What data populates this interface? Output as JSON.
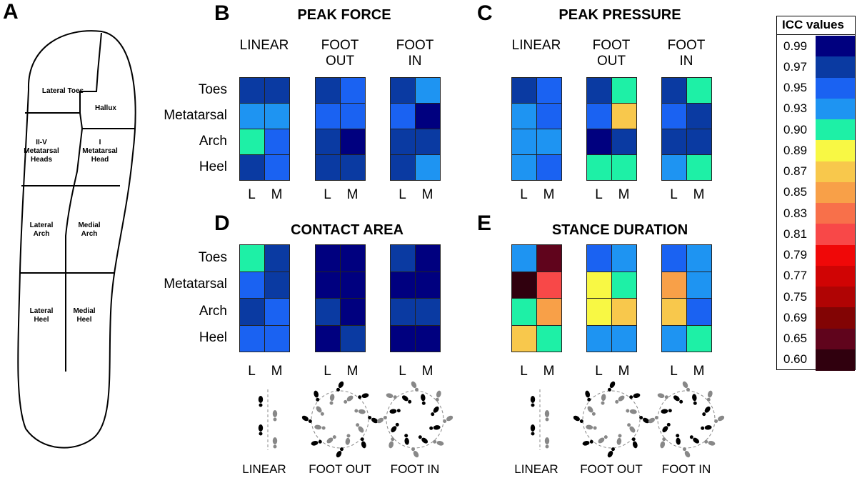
{
  "chart_data": {
    "type": "heatmap",
    "foot_diagram": {
      "letter": "A",
      "regions": [
        "Lateral Toes",
        "Hallux",
        "II-V Metatarsal Heads",
        "I Metatarsal Head",
        "Lateral Arch",
        "Medial Arch",
        "Lateral Heel",
        "Medial Heel"
      ]
    },
    "row_labels": [
      "Toes",
      "Metatarsal",
      "Arch",
      "Heel"
    ],
    "col_labels": [
      "L",
      "M"
    ],
    "legend": {
      "title": "ICC values",
      "ticks": [
        0.99,
        0.97,
        0.95,
        0.93,
        {
          "value": 0.9,
          "label": "0.90"
        },
        0.89,
        0.87,
        0.85,
        0.83,
        0.81,
        0.79,
        0.77,
        0.75,
        0.69,
        0.65,
        {
          "value": 0.6,
          "label": "0.60"
        }
      ],
      "colors": [
        "#00007f",
        "#0a3aa2",
        "#1a62f2",
        "#1e94f2",
        "#1ef0a6",
        "#f8f844",
        "#f8c84c",
        "#f8a048",
        "#f8704a",
        "#f84848",
        "#f00808",
        "#d00404",
        "#b00404",
        "#820404",
        "#60041c",
        "#30000e"
      ]
    },
    "panels": [
      {
        "letter": "B",
        "title": "PEAK FORCE",
        "maps": [
          {
            "condition": "LINEAR",
            "values": [
              [
                0.97,
                0.97
              ],
              [
                0.93,
                0.93
              ],
              [
                0.9,
                0.95
              ],
              [
                0.97,
                0.95
              ]
            ]
          },
          {
            "condition": "FOOT OUT",
            "values": [
              [
                0.97,
                0.95
              ],
              [
                0.95,
                0.95
              ],
              [
                0.97,
                0.99
              ],
              [
                0.97,
                0.97
              ]
            ]
          },
          {
            "condition": "FOOT IN",
            "values": [
              [
                0.97,
                0.93
              ],
              [
                0.95,
                0.99
              ],
              [
                0.97,
                0.97
              ],
              [
                0.97,
                0.93
              ]
            ]
          }
        ]
      },
      {
        "letter": "C",
        "title": "PEAK PRESSURE",
        "maps": [
          {
            "condition": "LINEAR",
            "values": [
              [
                0.97,
                0.95
              ],
              [
                0.93,
                0.95
              ],
              [
                0.93,
                0.93
              ],
              [
                0.93,
                0.95
              ]
            ]
          },
          {
            "condition": "FOOT OUT",
            "values": [
              [
                0.97,
                0.9
              ],
              [
                0.95,
                0.87
              ],
              [
                0.99,
                0.97
              ],
              [
                0.9,
                0.9
              ]
            ]
          },
          {
            "condition": "FOOT IN",
            "values": [
              [
                0.97,
                0.9
              ],
              [
                0.95,
                0.97
              ],
              [
                0.97,
                0.97
              ],
              [
                0.93,
                0.9
              ]
            ]
          }
        ]
      },
      {
        "letter": "D",
        "title": "CONTACT AREA",
        "maps": [
          {
            "condition": "LINEAR",
            "values": [
              [
                0.9,
                0.97
              ],
              [
                0.95,
                0.97
              ],
              [
                0.97,
                0.95
              ],
              [
                0.95,
                0.95
              ]
            ]
          },
          {
            "condition": "FOOT OUT",
            "values": [
              [
                0.99,
                0.99
              ],
              [
                0.99,
                0.99
              ],
              [
                0.97,
                0.99
              ],
              [
                0.99,
                0.97
              ]
            ]
          },
          {
            "condition": "FOOT IN",
            "values": [
              [
                0.97,
                0.99
              ],
              [
                0.99,
                0.99
              ],
              [
                0.97,
                0.97
              ],
              [
                0.99,
                0.99
              ]
            ]
          }
        ]
      },
      {
        "letter": "E",
        "title": "STANCE DURATION",
        "maps": [
          {
            "condition": "LINEAR",
            "values": [
              [
                0.93,
                0.65
              ],
              [
                0.6,
                0.81
              ],
              [
                0.9,
                0.85
              ],
              [
                0.87,
                0.9
              ]
            ]
          },
          {
            "condition": "FOOT OUT",
            "values": [
              [
                0.95,
                0.93
              ],
              [
                0.89,
                0.9
              ],
              [
                0.89,
                0.87
              ],
              [
                0.93,
                0.93
              ]
            ]
          },
          {
            "condition": "FOOT IN",
            "values": [
              [
                0.95,
                0.93
              ],
              [
                0.85,
                0.93
              ],
              [
                0.87,
                0.95
              ],
              [
                0.93,
                0.9
              ]
            ]
          }
        ]
      }
    ]
  }
}
